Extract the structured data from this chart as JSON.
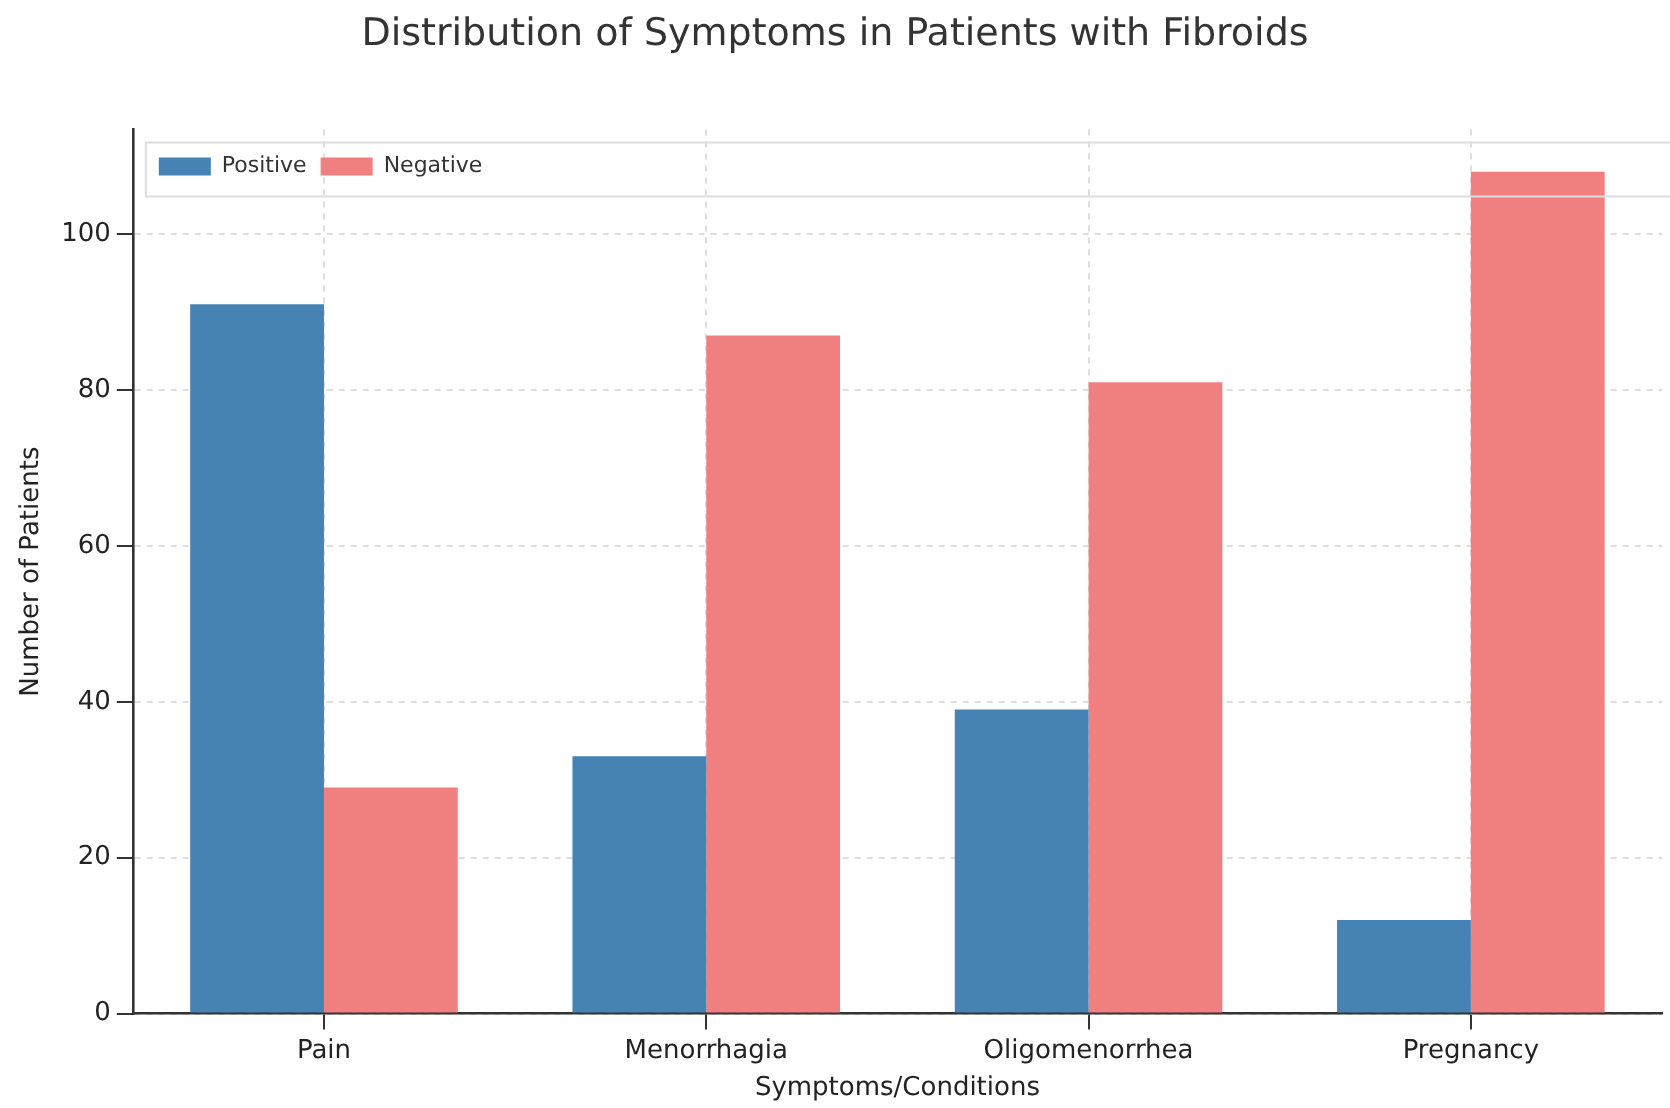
{
  "chart_data": {
    "type": "bar",
    "title": "Distribution of Symptoms in Patients with Fibroids",
    "xlabel": "Symptoms/Conditions",
    "ylabel": "Number of Patients",
    "categories": [
      "Pain",
      "Menorrhagia",
      "Oligomenorrhea",
      "Pregnancy"
    ],
    "series": [
      {
        "name": "Positive",
        "color": "#4682b4",
        "values": [
          91,
          33,
          39,
          12
        ]
      },
      {
        "name": "Negative",
        "color": "#f08080",
        "values": [
          29,
          87,
          81,
          108
        ]
      }
    ],
    "ylim": [
      0,
      113.4
    ],
    "yticks": [
      0,
      20,
      40,
      60,
      80,
      100
    ],
    "grid": true,
    "legend": "top left"
  }
}
